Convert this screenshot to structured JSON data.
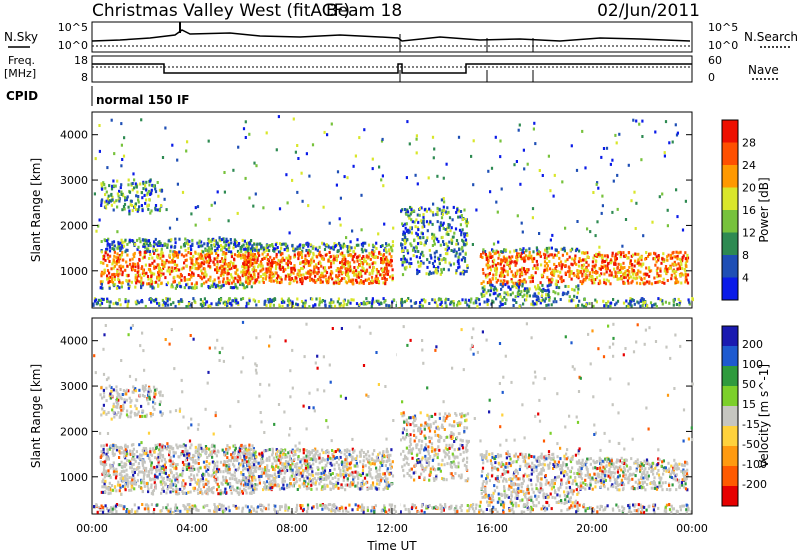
{
  "header": {
    "station": "Christmas Valley West (fitACF)",
    "beam": "Beam 18",
    "date": "02/Jun/2011"
  },
  "sky_panel": {
    "left_label": "N.Sky",
    "right_label": "N.Search",
    "ticks_left": [
      "10^5",
      "10^0"
    ],
    "ticks_right": [
      "10^5",
      "10^0"
    ]
  },
  "freq_panel": {
    "left_label_1": "Freq.",
    "left_label_2": "[MHz]",
    "ticks_left": [
      "18",
      "8"
    ],
    "right_label": "Nave",
    "ticks_right": [
      "60",
      "0"
    ]
  },
  "cpid": {
    "label": "CPID",
    "value": "normal 150 IF"
  },
  "chart_data": [
    {
      "type": "heatmap",
      "name": "power",
      "ylabel": "Slant Range [km]",
      "y_ticks": [
        "1000",
        "2000",
        "3000",
        "4000"
      ],
      "ylim": [
        180,
        4500
      ],
      "x_range_hours": [
        0,
        24
      ],
      "colorbar_label": "Power [dB]",
      "colorbar_ticks": [
        "4",
        "8",
        "12",
        "16",
        "20",
        "24",
        "28"
      ],
      "colorbar_colors": [
        "#0a1be8",
        "#1f4fb5",
        "#2e8a52",
        "#77c23c",
        "#d9e62a",
        "#ff9900",
        "#ff5000",
        "#ee1000"
      ]
    },
    {
      "type": "heatmap",
      "name": "velocity",
      "ylabel": "Slant Range [km]",
      "y_ticks": [
        "1000",
        "2000",
        "3000",
        "4000"
      ],
      "ylim": [
        180,
        4500
      ],
      "x_range_hours": [
        0,
        24
      ],
      "colorbar_label": "Velocity [m s^-1]",
      "colorbar_ticks": [
        "200",
        "100",
        "50",
        "15",
        "-15",
        "-50",
        "-100",
        "-200"
      ],
      "colorbar_colors": [
        "#1a1ab0",
        "#1e5acf",
        "#2f9a3d",
        "#7ccf2a",
        "#c6c6c0",
        "#ffd23c",
        "#ff9a10",
        "#ff5a00",
        "#e60000"
      ]
    }
  ],
  "x_axis": {
    "ticks": [
      "00:00",
      "04:00",
      "08:00",
      "12:00",
      "16:00",
      "20:00",
      "00:00"
    ],
    "label": "Time UT"
  }
}
